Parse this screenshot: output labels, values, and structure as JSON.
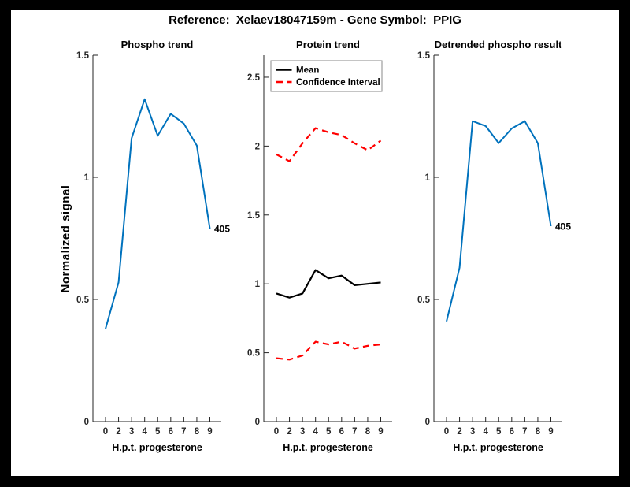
{
  "window": {
    "frame_color": "#000000",
    "canvas_color": "#ffffff",
    "axis_color": "#262626"
  },
  "figure_title": "Reference:  Xelaev18047159m - Gene Symbol:  PPIG",
  "chart_data": [
    {
      "type": "line",
      "title": "Phospho trend",
      "xlabel": "H.p.t. progesterone",
      "ylabel": "Normalized signal",
      "x_tick_labels": [
        "0",
        "2",
        "3",
        "4",
        "5",
        "6",
        "7",
        "8",
        "9"
      ],
      "ylim": [
        0,
        1.5
      ],
      "y_ticks": [
        "0",
        "0.5",
        "1",
        "1.5"
      ],
      "grid": false,
      "legend": null,
      "series": [
        {
          "name": "phospho-signal",
          "color": "#0072BD",
          "dash": false,
          "width": 2,
          "values": [
            0.38,
            0.57,
            1.16,
            1.32,
            1.17,
            1.26,
            1.22,
            1.13,
            0.79
          ]
        }
      ],
      "point_labels": [
        {
          "text": "405",
          "series": 0,
          "index": 8
        }
      ]
    },
    {
      "type": "line",
      "title": "Protein trend",
      "xlabel": "H.p.t. progesterone",
      "ylabel": "",
      "x_tick_labels": [
        "0",
        "2",
        "3",
        "4",
        "5",
        "6",
        "7",
        "8",
        "9"
      ],
      "ylim": [
        0,
        2.66
      ],
      "y_ticks": [
        "0",
        "0.5",
        "1",
        "1.5",
        "2",
        "2.5"
      ],
      "grid": false,
      "legend": {
        "position": "top-left",
        "entries": [
          {
            "label": "Mean",
            "color": "#000000",
            "dash": false
          },
          {
            "label": "Confidence Interval",
            "color": "#FF0000",
            "dash": true
          }
        ]
      },
      "series": [
        {
          "name": "mean",
          "color": "#000000",
          "dash": false,
          "width": 2.2,
          "values": [
            0.93,
            0.9,
            0.93,
            1.1,
            1.04,
            1.06,
            0.99,
            1.0,
            1.01
          ]
        },
        {
          "name": "confidence-interval-upper",
          "color": "#FF0000",
          "dash": true,
          "width": 2.2,
          "values": [
            1.94,
            1.89,
            2.02,
            2.13,
            2.1,
            2.08,
            2.02,
            1.97,
            2.04
          ]
        },
        {
          "name": "confidence-interval-lower",
          "color": "#FF0000",
          "dash": true,
          "width": 2.2,
          "values": [
            0.46,
            0.45,
            0.48,
            0.58,
            0.56,
            0.58,
            0.53,
            0.55,
            0.56
          ]
        }
      ],
      "point_labels": []
    },
    {
      "type": "line",
      "title": "Detrended phospho result",
      "xlabel": "H.p.t. progesterone",
      "ylabel": "",
      "x_tick_labels": [
        "0",
        "2",
        "3",
        "4",
        "5",
        "6",
        "7",
        "8",
        "9"
      ],
      "ylim": [
        0,
        1.5
      ],
      "y_ticks": [
        "0",
        "0.5",
        "1",
        "1.5"
      ],
      "grid": false,
      "legend": null,
      "series": [
        {
          "name": "detrended-phospho",
          "color": "#0072BD",
          "dash": false,
          "width": 2,
          "values": [
            0.41,
            0.63,
            1.23,
            1.21,
            1.14,
            1.2,
            1.23,
            1.14,
            0.8
          ]
        }
      ],
      "point_labels": [
        {
          "text": "405",
          "series": 0,
          "index": 8
        }
      ]
    }
  ]
}
